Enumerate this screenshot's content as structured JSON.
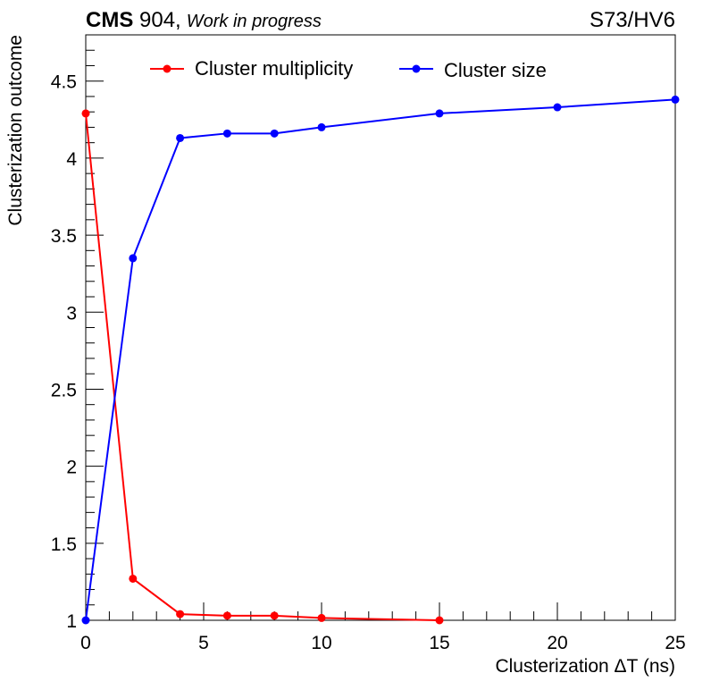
{
  "header": {
    "experiment": "CMS",
    "facility": " 904,",
    "status": "Work in progress",
    "run_label": "S73/HV6"
  },
  "chart_data": {
    "type": "line",
    "xlabel": "Clusterization ΔT (ns)",
    "ylabel": "Clusterization outcome",
    "xlim": [
      0,
      25
    ],
    "ylim": [
      1,
      4.8
    ],
    "x_ticks": [
      0,
      5,
      10,
      15,
      20,
      25
    ],
    "x_tick_labels": [
      "0",
      "5",
      "10",
      "15",
      "20",
      "25"
    ],
    "y_ticks": [
      1,
      1.5,
      2,
      2.5,
      3,
      3.5,
      4,
      4.5
    ],
    "y_tick_labels": [
      "1",
      "1.5",
      "2",
      "2.5",
      "3",
      "3.5",
      "4",
      "4.5"
    ],
    "legend_position": "top",
    "grid": false,
    "series": [
      {
        "name": "Cluster multiplicity",
        "color": "#ff0000",
        "x": [
          0,
          2,
          4,
          6,
          8,
          10,
          15
        ],
        "y": [
          4.29,
          1.27,
          1.04,
          1.03,
          1.03,
          1.015,
          1.0
        ]
      },
      {
        "name": "Cluster size",
        "color": "#0000ff",
        "x": [
          0,
          2,
          4,
          6,
          8,
          10,
          15,
          20,
          25
        ],
        "y": [
          1.0,
          3.35,
          4.13,
          4.16,
          4.16,
          4.2,
          4.29,
          4.33,
          4.38
        ]
      }
    ]
  }
}
